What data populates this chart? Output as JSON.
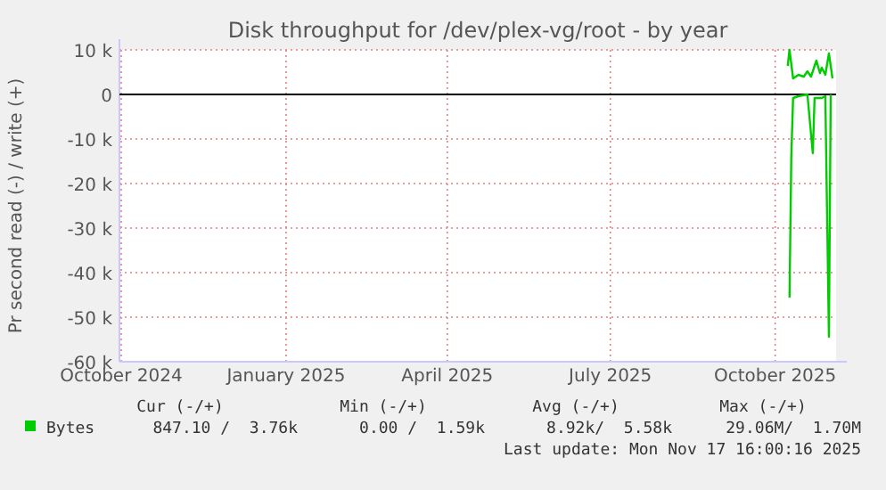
{
  "chart_data": {
    "type": "line",
    "title": "Disk throughput for /dev/plex-vg/root - by year",
    "ylabel": "Pr second read (-) / write (+)",
    "xlim": [
      "2024-10-13",
      "2025-11-17"
    ],
    "xticks": [
      {
        "value": "2024-10-14",
        "label": "October 2024"
      },
      {
        "value": "2025-01-14",
        "label": "January 2025"
      },
      {
        "value": "2025-04-14",
        "label": "April 2025"
      },
      {
        "value": "2025-07-14",
        "label": "July 2025"
      },
      {
        "value": "2025-10-14",
        "label": "October 2025"
      }
    ],
    "ylim": [
      -60000,
      10000
    ],
    "yticks": [
      {
        "value": -60000,
        "label": "-60 k"
      },
      {
        "value": -50000,
        "label": "-50 k"
      },
      {
        "value": -40000,
        "label": "-40 k"
      },
      {
        "value": -30000,
        "label": "-30 k"
      },
      {
        "value": -20000,
        "label": "-20 k"
      },
      {
        "value": -10000,
        "label": "-10 k"
      },
      {
        "value": 0,
        "label": "0"
      },
      {
        "value": 10000,
        "label": "10 k"
      }
    ],
    "grid": true,
    "legend": "bottom",
    "marker": "none",
    "line_style": "solid",
    "ref_lines": [
      {
        "axis": "y",
        "value": 0,
        "color": "#000000"
      }
    ],
    "series": [
      {
        "name": "Bytes",
        "color": "#00cc00",
        "x": [
          "2025-10-21",
          "2025-10-22",
          "2025-10-24",
          "2025-10-27",
          "2025-10-30",
          "2025-11-01",
          "2025-11-03",
          "2025-11-06",
          "2025-11-08",
          "2025-11-09",
          "2025-11-11",
          "2025-11-13",
          "2025-11-15"
        ],
        "values": [
          6400,
          10000,
          3600,
          4400,
          4000,
          5200,
          4000,
          7600,
          4800,
          6000,
          4400,
          9200,
          3600
        ]
      },
      {
        "color": "#00cc00",
        "x": [
          "2025-10-22",
          "2025-10-23",
          "2025-10-24",
          "2025-10-27",
          "2025-11-01",
          "2025-11-04",
          "2025-11-05",
          "2025-11-09",
          "2025-11-11",
          "2025-11-13",
          "2025-11-14"
        ],
        "values": [
          -45600,
          -14000,
          -800,
          -400,
          0,
          -13200,
          -800,
          -800,
          -400,
          -54400,
          0
        ]
      }
    ],
    "annotations": [
      "Cur (-/+)",
      "Min (-/+)",
      "Avg (-/+)",
      "Max (-/+)",
      "847.10 /  3.76k",
      "0.00 /  1.59k",
      "8.92k/  5.58k",
      "29.06M/  1.70M",
      "Last update: Mon Nov 17 16:00:16 2025"
    ]
  }
}
